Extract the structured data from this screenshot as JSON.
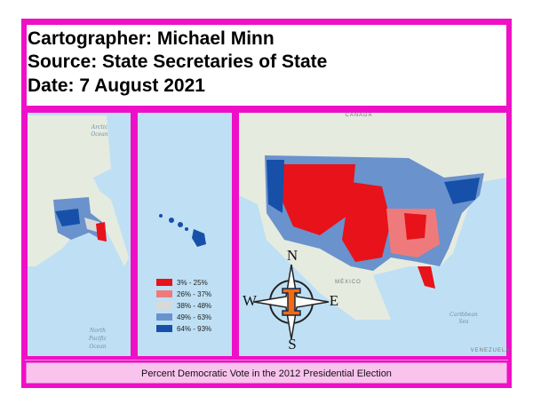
{
  "header": {
    "lines": [
      "Cartographer: Michael Minn",
      "Source: State Secretaries of State",
      "Date: 7 August 2021"
    ]
  },
  "legend": {
    "items": [
      {
        "label": "3% - 25%",
        "color": "#e8121a"
      },
      {
        "label": "26% - 37%",
        "color": "#ef7a7c"
      },
      {
        "label": "38% - 48%",
        "color": "#d9d9d9"
      },
      {
        "label": "49% - 63%",
        "color": "#6a92cc"
      },
      {
        "label": "64% - 93%",
        "color": "#1650a8"
      }
    ]
  },
  "map_labels": {
    "arctic": [
      "Arctic",
      "Ocean"
    ],
    "pacific": [
      "North",
      "Pacific",
      "Ocean"
    ],
    "canada": "CANADA",
    "mexico": "MÉXICO",
    "caribbean": [
      "Caribbean",
      "Sea"
    ],
    "venezuela": "VENEZUELA"
  },
  "compass": {
    "n": "N",
    "e": "E",
    "s": "S",
    "w": "W"
  },
  "footer": {
    "caption": "Percent Democratic Vote in the 2012 Presidential Election"
  }
}
